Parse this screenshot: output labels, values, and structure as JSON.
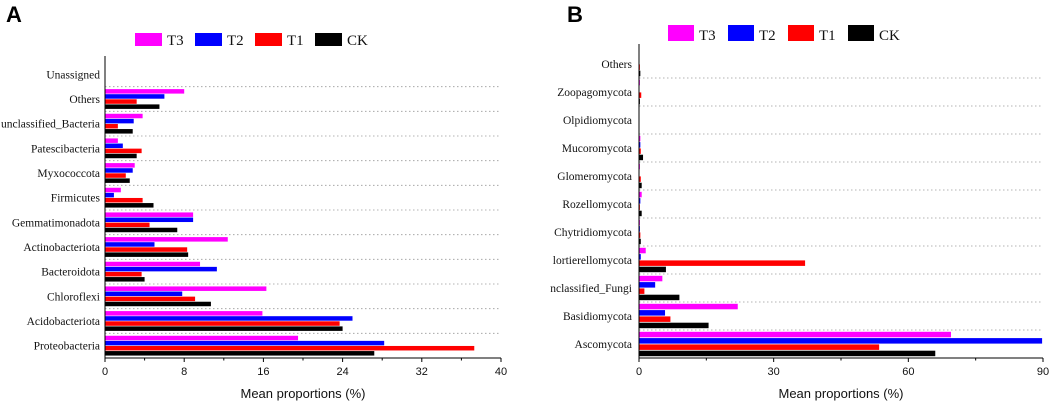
{
  "chart_data": [
    {
      "panel": "A",
      "type": "bar",
      "orientation": "horizontal",
      "xlabel": "Mean proportions (%)",
      "xlim": [
        0,
        40
      ],
      "xticks": [
        "0",
        "8",
        "16",
        "24",
        "32",
        "40"
      ],
      "legend": [
        "T3",
        "T2",
        "T1",
        "CK"
      ],
      "legend_position": "top",
      "categories": [
        "Proteobacteria",
        "Acidobacteriota",
        "Chloroflexi",
        "Bacteroidota",
        "Actinobacteriota",
        "Gemmatimonadota",
        "Firmicutes",
        "Myxococcota",
        "Patescibacteria",
        "unclassified_Bacteria",
        "Others",
        "Unassigned"
      ],
      "series": [
        {
          "name": "T3",
          "color": "#ff00ff",
          "values": [
            19.5,
            15.9,
            16.3,
            9.6,
            12.4,
            8.9,
            1.6,
            3.0,
            1.3,
            3.8,
            8.0,
            0
          ]
        },
        {
          "name": "T2",
          "color": "#0000ff",
          "values": [
            28.2,
            25.0,
            7.8,
            11.3,
            5.0,
            8.9,
            0.9,
            2.8,
            1.8,
            2.9,
            6.0,
            0
          ]
        },
        {
          "name": "T1",
          "color": "#ff0000",
          "values": [
            37.3,
            23.7,
            9.1,
            3.7,
            8.3,
            4.5,
            3.8,
            2.1,
            3.7,
            1.3,
            3.2,
            0
          ]
        },
        {
          "name": "CK",
          "color": "#000000",
          "values": [
            27.2,
            24.0,
            10.7,
            4.0,
            8.4,
            7.3,
            4.9,
            2.5,
            3.2,
            2.8,
            5.5,
            0
          ]
        }
      ]
    },
    {
      "panel": "B",
      "type": "bar",
      "orientation": "horizontal",
      "xlabel": "Mean proportions (%)",
      "xlim": [
        0,
        90
      ],
      "xticks": [
        "0",
        "30",
        "60",
        "90"
      ],
      "legend": [
        "T3",
        "T2",
        "T1",
        "CK"
      ],
      "legend_position": "top",
      "categories": [
        "Ascomycota",
        "Basidiomycota",
        "nclassified_Fungi",
        "lortierellomycota",
        "Chytridiomycota",
        "Rozellomycota",
        "Glomeromycota",
        "Mucoromycota",
        "Olpidiomycota",
        "Zoopagomycota",
        "Others"
      ],
      "series": [
        {
          "name": "T3",
          "color": "#ff00ff",
          "values": [
            69.5,
            22.0,
            5.2,
            1.5,
            0.2,
            0.6,
            0.2,
            0.3,
            0.1,
            0.2,
            0.1
          ]
        },
        {
          "name": "T2",
          "color": "#0000ff",
          "values": [
            89.8,
            5.8,
            3.6,
            0.4,
            0.2,
            0.3,
            0.1,
            0.3,
            0.1,
            0.1,
            0.1
          ]
        },
        {
          "name": "T1",
          "color": "#ff0000",
          "values": [
            53.5,
            7.0,
            1.2,
            37.0,
            0.3,
            0.2,
            0.4,
            0.4,
            0.1,
            0.5,
            0.2
          ]
        },
        {
          "name": "CK",
          "color": "#000000",
          "values": [
            66.0,
            15.5,
            9.0,
            6.0,
            0.4,
            0.6,
            0.6,
            0.9,
            0.1,
            0.2,
            0.3
          ]
        }
      ]
    }
  ]
}
